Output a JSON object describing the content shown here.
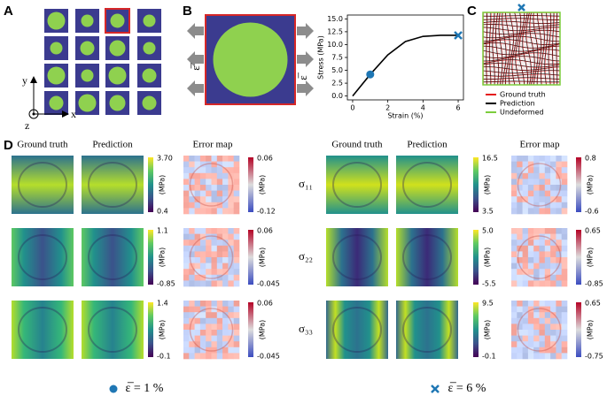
{
  "panels": {
    "a": "A",
    "b": "B",
    "c": "C",
    "d": "D"
  },
  "panel_a": {
    "axes": {
      "y": "y",
      "x": "x",
      "z": "z"
    }
  },
  "panel_b": {
    "strain_label": "ε̅"
  },
  "chart_data": {
    "type": "line",
    "x": [
      0,
      1,
      2,
      3,
      4,
      5,
      6
    ],
    "series": [
      {
        "color": "#000000",
        "values": [
          0,
          4.2,
          8.0,
          10.6,
          11.6,
          11.8,
          11.8
        ]
      }
    ],
    "markers": [
      {
        "x": 1,
        "y": 4.2,
        "shape": "circle",
        "color": "#1f77b4"
      },
      {
        "x": 6,
        "y": 11.8,
        "shape": "cross",
        "color": "#1f77b4"
      }
    ],
    "x_label": "Strain (%)",
    "y_label": "Stress (MPa)",
    "xlim": [
      -0.3,
      6.3
    ],
    "ylim": [
      -0.75,
      15.75
    ],
    "xticks": [
      0,
      2,
      4,
      6
    ],
    "yticks": [
      {
        "value": 0,
        "label": "0.0"
      },
      2.5,
      {
        "value": 5,
        "label": "5.0"
      },
      7.5,
      {
        "value": 10,
        "label": "10.0"
      },
      12.5,
      {
        "value": 15,
        "label": "15.0"
      }
    ]
  },
  "panel_c": {
    "legend": [
      {
        "name": "Ground truth",
        "color": "#e41a1c"
      },
      {
        "name": "Prediction",
        "color": "#000000"
      },
      {
        "name": "Undeformed",
        "color": "#7ccd3c"
      }
    ]
  },
  "panel_d": {
    "unit": "(MPa)",
    "row_labels": [
      "σ₁₁",
      "σ₂₂",
      "σ₃₃"
    ],
    "groups": [
      {
        "headers": [
          "Ground truth",
          "Prediction",
          "Error map"
        ],
        "caption": "ε̅ = 1 %",
        "rows": [
          {
            "field": {
              "max": "3.70",
              "min": "0.4"
            },
            "error": {
              "max": "0.06",
              "min": "-0.12"
            }
          },
          {
            "field": {
              "max": "1.1",
              "min": "-0.85"
            },
            "error": {
              "max": "0.06",
              "min": "-0.045"
            }
          },
          {
            "field": {
              "max": "1.4",
              "min": "-0.1"
            },
            "error": {
              "max": "0.06",
              "min": "-0.045"
            }
          }
        ]
      },
      {
        "headers": [
          "Ground truth",
          "Prediction",
          "Error map"
        ],
        "caption": "ε̅ = 6 %",
        "rows": [
          {
            "field": {
              "max": "16.5",
              "min": "3.5"
            },
            "error": {
              "max": "0.8",
              "min": "-0.6"
            }
          },
          {
            "field": {
              "max": "5.0",
              "min": "-5.5"
            },
            "error": {
              "max": "0.65",
              "min": "-0.85"
            }
          },
          {
            "field": {
              "max": "9.5",
              "min": "-0.1"
            },
            "error": {
              "max": "0.65",
              "min": "-0.75"
            }
          }
        ]
      }
    ]
  }
}
